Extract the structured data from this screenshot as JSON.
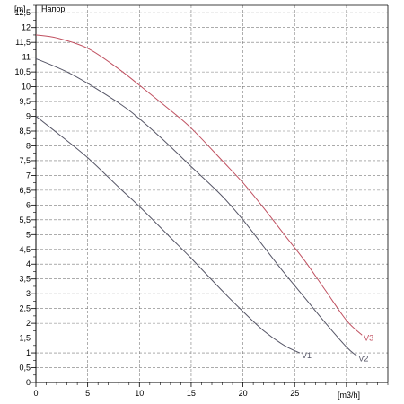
{
  "chart_data": {
    "type": "line",
    "y_unit_label": "[m]",
    "y_name_label": "Напор",
    "x_unit_label": "[m3/h]",
    "xlim": [
      0,
      34
    ],
    "ylim": [
      0,
      12.75
    ],
    "x_ticks": [
      0,
      5,
      10,
      15,
      20,
      25
    ],
    "x_tick_labels": [
      "0",
      "5",
      "10",
      "15",
      "20",
      "25"
    ],
    "y_ticks": [
      0,
      0.5,
      1,
      1.5,
      2,
      2.5,
      3,
      3.5,
      4,
      4.5,
      5,
      5.5,
      6,
      6.5,
      7,
      7.5,
      8,
      8.5,
      9,
      9.5,
      10,
      10.5,
      11,
      11.5,
      12,
      12.5
    ],
    "y_tick_labels": [
      "0",
      "0,5",
      "1",
      "1,5",
      "2",
      "2,5",
      "3",
      "3,5",
      "4",
      "4,5",
      "5",
      "5,5",
      "6",
      "6,5",
      "7",
      "7,5",
      "8",
      "8,5",
      "9",
      "9,5",
      "10",
      "10,5",
      "11",
      "11,5",
      "12",
      "12,5"
    ],
    "grid": true,
    "series": [
      {
        "name": "V1",
        "color": "#555566",
        "x": [
          0,
          2,
          5,
          8,
          10,
          13,
          15,
          18,
          20,
          22,
          24,
          25.5
        ],
        "y": [
          9.0,
          8.45,
          7.6,
          6.6,
          5.95,
          4.9,
          4.2,
          3.1,
          2.4,
          1.75,
          1.25,
          1.0
        ]
      },
      {
        "name": "V2",
        "color": "#555566",
        "x": [
          0,
          3,
          6,
          9,
          12,
          15,
          18,
          20,
          22,
          24,
          26,
          28,
          30,
          31
        ],
        "y": [
          10.95,
          10.5,
          9.9,
          9.2,
          8.3,
          7.3,
          6.3,
          5.5,
          4.6,
          3.7,
          2.85,
          2.0,
          1.2,
          0.9
        ]
      },
      {
        "name": "V3",
        "color": "#c05060",
        "x": [
          0,
          2,
          5,
          8,
          10,
          13,
          15,
          18,
          20,
          22,
          24,
          26,
          28,
          30,
          31.5
        ],
        "y": [
          11.75,
          11.65,
          11.3,
          10.6,
          10.05,
          9.2,
          8.6,
          7.5,
          6.75,
          5.9,
          5.0,
          4.1,
          3.1,
          2.1,
          1.6
        ]
      }
    ]
  }
}
